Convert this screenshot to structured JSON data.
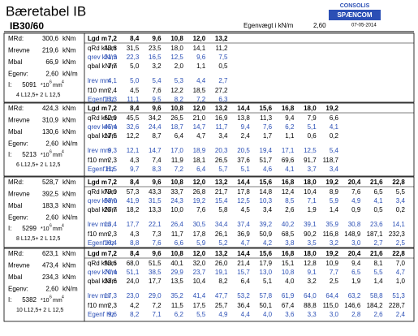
{
  "header": {
    "title": "Bæretabel IB",
    "subtitle": "IB30/60",
    "weight_label": "Egenvægt i kN/m",
    "weight_value": "2,60",
    "logo_top": "CONSOLIS",
    "logo_main": "SPÆNCOM",
    "date": "07-05-2014"
  },
  "blocks": [
    {
      "props": [
        {
          "label": "MRd:",
          "value": "300,6",
          "unit": "kNm"
        },
        {
          "label": "Mrevne",
          "value": "219,6",
          "unit": "kNm"
        },
        {
          "label": "Mbal",
          "value": "66,9",
          "unit": "kNm"
        },
        {
          "label": "Egenv:",
          "value": "2,60",
          "unit": "kN/m"
        }
      ],
      "inertia": {
        "label": "I:",
        "value": "5091",
        "unit": "*10",
        "exp1": "6",
        "unit2": "mm",
        "exp2": "4"
      },
      "rebar": "4 L12,5+ 2 L 12,5",
      "table": {
        "head_label": "Lgd m",
        "lengths": [
          "7,2",
          "8,4",
          "9,6",
          "10,8",
          "12,0",
          "13,2"
        ],
        "rows": [
          {
            "label": "qRd kN/m",
            "values": [
              "43,8",
              "31,5",
              "23,5",
              "18,0",
              "14,1",
              "11,2"
            ]
          },
          {
            "label": "qrev kN/m",
            "values": [
              "31,3",
              "22,3",
              "16,5",
              "12,5",
              "9,6",
              "7,5"
            ]
          },
          {
            "label": "qbal kN/m",
            "values": [
              "7,7",
              "5,0",
              "3,2",
              "2,0",
              "1,1",
              "0,5"
            ]
          },
          {
            "label": "lrev mm",
            "values": [
              "4,1",
              "5,0",
              "5,4",
              "5,3",
              "4,4",
              "2,7"
            ]
          },
          {
            "label": "f10 mm",
            "values": [
              "2,4",
              "4,5",
              "7,6",
              "12,2",
              "18,5",
              "27,2"
            ]
          },
          {
            "label": "Egenf Hz",
            "values": [
              "13,3",
              "11,1",
              "9,5",
              "8,2",
              "7,2",
              "6,3"
            ]
          }
        ]
      }
    },
    {
      "props": [
        {
          "label": "MRd:",
          "value": "424,3",
          "unit": "kNm"
        },
        {
          "label": "Mrevne",
          "value": "310,9",
          "unit": "kNm"
        },
        {
          "label": "Mbal",
          "value": "130,6",
          "unit": "kNm"
        },
        {
          "label": "Egenv:",
          "value": "2,60",
          "unit": "kN/m"
        }
      ],
      "inertia": {
        "label": "I:",
        "value": "5213",
        "unit": "*10",
        "exp1": "6",
        "unit2": "mm",
        "exp2": "4"
      },
      "rebar": "6 L12,5+ 2 L 12,5",
      "table": {
        "head_label": "Lgd m",
        "lengths": [
          "7,2",
          "8,4",
          "9,6",
          "10,8",
          "12,0",
          "13,2",
          "14,4",
          "15,6",
          "16,8",
          "18,0",
          "19,2"
        ],
        "rows": [
          {
            "label": "qRd kN/m",
            "values": [
              "62,9",
              "45,5",
              "34,2",
              "26,5",
              "21,0",
              "16,9",
              "13,8",
              "11,3",
              "9,4",
              "7,9",
              "6,6"
            ]
          },
          {
            "label": "qrev kN/m",
            "values": [
              "45,4",
              "32,6",
              "24,4",
              "18,7",
              "14,7",
              "11,7",
              "9,4",
              "7,6",
              "6,2",
              "5,1",
              "4,1"
            ]
          },
          {
            "label": "qbal kN/m",
            "values": [
              "17,5",
              "12,2",
              "8,7",
              "6,4",
              "4,7",
              "3,4",
              "2,4",
              "1,7",
              "1,1",
              "0,6",
              "0,2"
            ]
          },
          {
            "label": "lrev mm",
            "values": [
              "9,3",
              "12,1",
              "14,7",
              "17,0",
              "18,9",
              "20,3",
              "20,5",
              "19,4",
              "17,1",
              "12,5",
              "5,4"
            ]
          },
          {
            "label": "f10 mm",
            "values": [
              "2,3",
              "4,3",
              "7,4",
              "11,9",
              "18,1",
              "26,5",
              "37,6",
              "51,7",
              "69,6",
              "91,7",
              "118,7"
            ]
          },
          {
            "label": "Egenf Hz",
            "values": [
              "11,5",
              "9,7",
              "8,3",
              "7,2",
              "6,4",
              "5,7",
              "5,1",
              "4,6",
              "4,1",
              "3,7",
              "3,4"
            ]
          }
        ]
      }
    },
    {
      "props": [
        {
          "label": "MRd:",
          "value": "528,7",
          "unit": "kNm"
        },
        {
          "label": "Mrevne",
          "value": "392,5",
          "unit": "kNm"
        },
        {
          "label": "Mbal",
          "value": "183,3",
          "unit": "kNm"
        },
        {
          "label": "Egenv:",
          "value": "2,60",
          "unit": "kN/m"
        }
      ],
      "inertia": {
        "label": "I:",
        "value": "5299",
        "unit": "*10",
        "exp1": "6",
        "unit2": "mm",
        "exp2": "4"
      },
      "rebar": "8 L12,5+ 2 L 12,5",
      "table": {
        "head_label": "Lgd m",
        "lengths": [
          "7,2",
          "8,4",
          "9,6",
          "10,8",
          "12,0",
          "13,2",
          "14,4",
          "15,6",
          "16,8",
          "18,0",
          "19,2",
          "20,4",
          "21,6",
          "22,8"
        ],
        "rows": [
          {
            "label": "qRd kN/m",
            "values": [
              "79,0",
              "57,3",
              "43,3",
              "33,7",
              "26,8",
              "21,7",
              "17,8",
              "14,8",
              "12,4",
              "10,4",
              "8,9",
              "7,6",
              "6,5",
              "5,5"
            ]
          },
          {
            "label": "qrev kN/m",
            "values": [
              "58,0",
              "41,9",
              "31,5",
              "24,3",
              "19,2",
              "15,4",
              "12,5",
              "10,3",
              "8,5",
              "7,1",
              "5,9",
              "4,9",
              "4,1",
              "3,4"
            ]
          },
          {
            "label": "qbal kN/m",
            "values": [
              "25,7",
              "18,2",
              "13,3",
              "10,0",
              "7,6",
              "5,8",
              "4,5",
              "3,4",
              "2,6",
              "1,9",
              "1,4",
              "0,9",
              "0,5",
              "0,2"
            ]
          },
          {
            "label": "lrev mm",
            "values": [
              "13,4",
              "17,7",
              "22,1",
              "26,4",
              "30,5",
              "34,4",
              "37,4",
              "39,2",
              "40,2",
              "39,1",
              "35,9",
              "30,8",
              "23,6",
              "14,1"
            ]
          },
          {
            "label": "f10 mm",
            "values": [
              "2,3",
              "4,3",
              "7,3",
              "11,7",
              "17,8",
              "26,1",
              "36,9",
              "50,9",
              "68,5",
              "90,2",
              "116,8",
              "148,9",
              "187,1",
              "232,3"
            ]
          },
          {
            "label": "Egenf Hz",
            "values": [
              "10,4",
              "8,8",
              "7,6",
              "6,6",
              "5,9",
              "5,2",
              "4,7",
              "4,2",
              "3,8",
              "3,5",
              "3,2",
              "3,0",
              "2,7",
              "2,5"
            ]
          }
        ]
      }
    },
    {
      "props": [
        {
          "label": "MRd:",
          "value": "623,1",
          "unit": "kNm"
        },
        {
          "label": "Mrevne",
          "value": "473,4",
          "unit": "kNm"
        },
        {
          "label": "Mbal",
          "value": "234,3",
          "unit": "kNm"
        },
        {
          "label": "Egenv:",
          "value": "2,60",
          "unit": "kN/m"
        }
      ],
      "inertia": {
        "label": "I:",
        "value": "5382",
        "unit": "*10",
        "exp1": "6",
        "unit2": "mm",
        "exp2": "4"
      },
      "rebar": "10 L12,5+ 2 L 12,5",
      "table": {
        "head_label": "Lgd m",
        "lengths": [
          "7,2",
          "8,4",
          "9,6",
          "10,8",
          "12,0",
          "13,2",
          "14,4",
          "15,6",
          "16,8",
          "18,0",
          "19,2",
          "20,4",
          "21,6",
          "22,8"
        ],
        "rows": [
          {
            "label": "qRd kN/m",
            "values": [
              "93,6",
              "68,0",
              "51,5",
              "40,1",
              "32,0",
              "26,0",
              "21,4",
              "17,9",
              "15,1",
              "12,8",
              "10,9",
              "9,4",
              "8,1",
              "7,0"
            ]
          },
          {
            "label": "qrev kN/m",
            "values": [
              "70,4",
              "51,1",
              "38,5",
              "29,9",
              "23,7",
              "19,1",
              "15,7",
              "13,0",
              "10,8",
              "9,1",
              "7,7",
              "6,5",
              "5,5",
              "4,7"
            ]
          },
          {
            "label": "qbal kN/m",
            "values": [
              "33,6",
              "24,0",
              "17,7",
              "13,5",
              "10,4",
              "8,2",
              "6,4",
              "5,1",
              "4,0",
              "3,2",
              "2,5",
              "1,9",
              "1,4",
              "1,0"
            ]
          },
          {
            "label": "lrev mm",
            "values": [
              "17,3",
              "23,0",
              "29,0",
              "35,2",
              "41,4",
              "47,7",
              "53,2",
              "57,8",
              "61,9",
              "64,0",
              "64,4",
              "63,2",
              "58,8",
              "51,3"
            ]
          },
          {
            "label": "f10 mm",
            "values": [
              "2,3",
              "4,2",
              "7,2",
              "11,5",
              "17,5",
              "25,7",
              "36,4",
              "50,1",
              "67,4",
              "88,8",
              "115,0",
              "146,6",
              "184,2",
              "228,7"
            ]
          },
          {
            "label": "Egenf Hz",
            "values": [
              "9,6",
              "8,2",
              "7,1",
              "6,2",
              "5,5",
              "4,9",
              "4,4",
              "4,0",
              "3,6",
              "3,3",
              "3,0",
              "2,8",
              "2,6",
              "2,4"
            ]
          }
        ]
      }
    }
  ]
}
